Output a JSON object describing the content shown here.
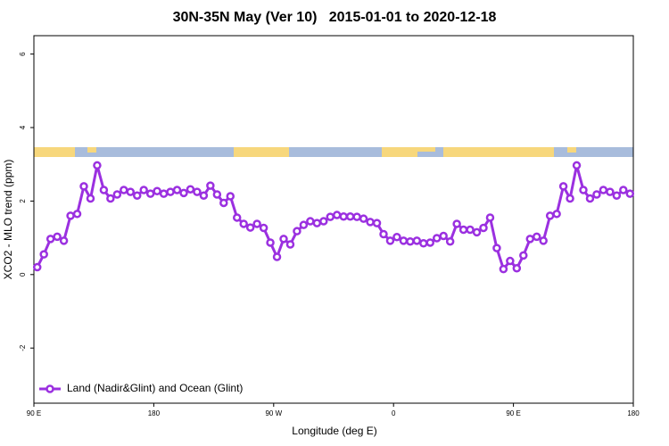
{
  "chart_data": {
    "type": "line",
    "title": "30N-35N May (Ver 10)   2015-01-01 to 2020-12-18",
    "x_label": "Longitude (deg E)",
    "y_label": "XCO2 - MLO trend (ppm)",
    "xlim": [
      90,
      540
    ],
    "ylim": [
      -3.5,
      6.5
    ],
    "xticks": [
      {
        "value": 90,
        "label": "90 E"
      },
      180,
      {
        "value": 270,
        "label": "90 W"
      },
      {
        "value": 360,
        "label": "0"
      },
      {
        "value": 450,
        "label": "90 E"
      },
      {
        "value": 540,
        "label": "180"
      }
    ],
    "yticks": [
      -2,
      0,
      2,
      4,
      6
    ],
    "legend": "bottom-left",
    "x": [
      92.5,
      97.5,
      102.5,
      107.5,
      112.5,
      117.5,
      122.5,
      127.5,
      132.5,
      137.5,
      142.5,
      147.5,
      152.5,
      157.5,
      162.5,
      167.5,
      172.5,
      177.5,
      182.5,
      187.5,
      192.5,
      197.5,
      202.5,
      207.5,
      212.5,
      217.5,
      222.5,
      227.5,
      232.5,
      237.5,
      242.5,
      247.5,
      252.5,
      257.5,
      262.5,
      267.5,
      272.5,
      277.5,
      282.5,
      287.5,
      292.5,
      297.5,
      302.5,
      307.5,
      312.5,
      317.5,
      322.5,
      327.5,
      332.5,
      337.5,
      342.5,
      347.5,
      352.5,
      357.5,
      362.5,
      367.5,
      372.5,
      377.5,
      382.5,
      387.5,
      392.5,
      397.5,
      402.5,
      407.5,
      412.5,
      417.5,
      422.5,
      427.5,
      432.5,
      437.5,
      442.5,
      447.5,
      452.5,
      457.5,
      462.5,
      467.5,
      472.5,
      477.5,
      482.5,
      487.5,
      492.5,
      497.5,
      502.5,
      507.5,
      512.5,
      517.5,
      522.5,
      527.5,
      532.5,
      537.5
    ],
    "series": [
      {
        "name": "Land (Nadir&Glint) and Ocean (Glint)",
        "color": "#9b30e0",
        "values": [
          0.2,
          0.55,
          0.97,
          1.03,
          0.92,
          1.6,
          1.65,
          2.4,
          2.07,
          2.97,
          2.3,
          2.07,
          2.18,
          2.3,
          2.25,
          2.15,
          2.3,
          2.2,
          2.27,
          2.2,
          2.25,
          2.3,
          2.22,
          2.32,
          2.25,
          2.15,
          2.42,
          2.18,
          1.95,
          2.13,
          1.55,
          1.38,
          1.28,
          1.38,
          1.27,
          0.87,
          0.48,
          0.97,
          0.82,
          1.18,
          1.35,
          1.45,
          1.4,
          1.45,
          1.57,
          1.62,
          1.58,
          1.58,
          1.57,
          1.52,
          1.43,
          1.4,
          1.1,
          0.92,
          1.02,
          0.92,
          0.9,
          0.92,
          0.85,
          0.87,
          0.99,
          1.05,
          0.9,
          1.38,
          1.22,
          1.22,
          1.15,
          1.27,
          1.55,
          0.72,
          0.15,
          0.37,
          0.17,
          0.52,
          0.97,
          1.03,
          0.92,
          1.6,
          1.65,
          2.4,
          2.07,
          2.97,
          2.3,
          2.07,
          2.18,
          2.3,
          2.25,
          2.15,
          2.3,
          2.2
        ]
      }
    ]
  }
}
